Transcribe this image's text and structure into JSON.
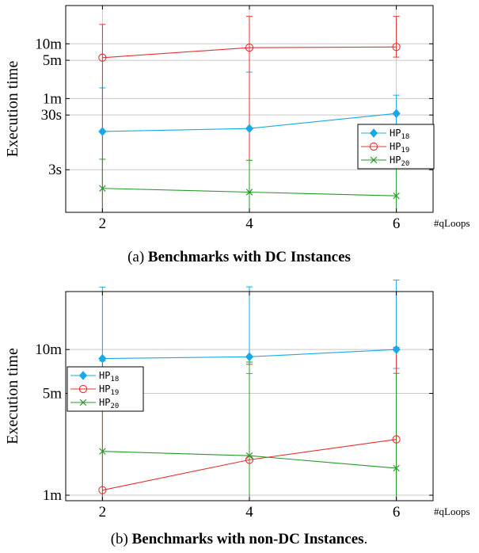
{
  "figure": {
    "caption_a_prefix": "(a) ",
    "caption_a_bold": "Benchmarks with DC Instances",
    "caption_b_prefix": "(b) ",
    "caption_b_bold": "Benchmarks with non-DC Instances",
    "caption_b_suffix": "."
  },
  "chart_data": [
    {
      "type": "line",
      "ylabel": "Execution time",
      "xlabel": "#qLoops",
      "x": [
        2,
        4,
        6
      ],
      "ylog": true,
      "yunit": "seconds",
      "ylim": [
        0.5,
        3000
      ],
      "yticks": [
        {
          "value": 600,
          "label": "10m"
        },
        {
          "value": 300,
          "label": "5m"
        },
        {
          "value": 60,
          "label": "1m"
        },
        {
          "value": 30,
          "label": "30s"
        },
        {
          "value": 3,
          "label": "3s"
        }
      ],
      "grid": true,
      "legend_position": "right",
      "series": [
        {
          "name": "HP18",
          "label_base": "HP",
          "label_sub": "18",
          "color": "#1aa9e6",
          "marker": "diamond",
          "values": [
            15,
            17,
            32
          ],
          "err_low": [
            15,
            17,
            26
          ],
          "err_high": [
            79,
            165,
            37
          ]
        },
        {
          "name": "HP19",
          "label_base": "HP",
          "label_sub": "19",
          "color": "#e63232",
          "marker": "circle",
          "values": [
            335,
            510,
            525
          ],
          "err_low": [
            335,
            510,
            182
          ],
          "err_high": [
            1020,
            1390,
            1380
          ]
        },
        {
          "name": "HP20",
          "label_base": "HP",
          "label_sub": "20",
          "color": "#2a9a2a",
          "marker": "x",
          "values": [
            1.37,
            1.17,
            1.0
          ],
          "err_low": [
            1.37,
            1.17,
            1.0
          ],
          "err_high": [
            3.3,
            3.3,
            3.3
          ]
        }
      ]
    },
    {
      "type": "line",
      "ylabel": "Execution time",
      "xlabel": "#qLoops",
      "x": [
        2,
        4,
        6
      ],
      "ylog": true,
      "yunit": "seconds",
      "ylim": [
        55,
        1500
      ],
      "yticks": [
        {
          "value": 600,
          "label": "10m"
        },
        {
          "value": 300,
          "label": "5m"
        },
        {
          "value": 60,
          "label": "1m"
        }
      ],
      "grid": true,
      "legend_position": "left",
      "series": [
        {
          "name": "HP18",
          "label_base": "HP",
          "label_sub": "18",
          "color": "#1aa9e6",
          "marker": "diamond",
          "values": [
            520,
            535,
            600
          ],
          "err_low": [
            120,
            125,
            155
          ],
          "err_high": [
            1090,
            1080,
            1200
          ]
        },
        {
          "name": "HP19",
          "label_base": "HP",
          "label_sub": "19",
          "color": "#e63232",
          "marker": "circle",
          "values": [
            65,
            105,
            145
          ],
          "err_low": [
            65,
            105,
            145
          ],
          "err_high": [
            370,
            370,
            475
          ]
        },
        {
          "name": "HP20",
          "label_base": "HP",
          "label_sub": "20",
          "color": "#2a9a2a",
          "marker": "x",
          "values": [
            120,
            112,
            92
          ],
          "err_low": [
            120,
            112,
            92
          ],
          "err_high": [
            380,
            380,
            320
          ]
        }
      ]
    }
  ]
}
